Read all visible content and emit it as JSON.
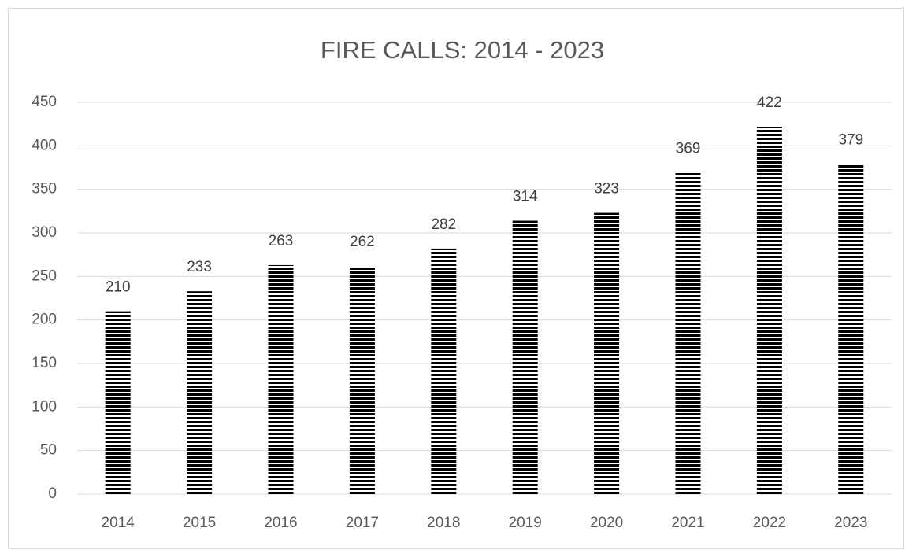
{
  "chart_data": {
    "type": "bar",
    "title": "FIRE CALLS: 2014 - 2023",
    "categories": [
      "2014",
      "2015",
      "2016",
      "2017",
      "2018",
      "2019",
      "2020",
      "2021",
      "2022",
      "2023"
    ],
    "values": [
      210,
      233,
      263,
      262,
      282,
      314,
      323,
      369,
      422,
      379
    ],
    "color": "#000000",
    "ylim": [
      0,
      450
    ],
    "yticks": [
      0,
      50,
      100,
      150,
      200,
      250,
      300,
      350,
      400,
      450
    ],
    "grid": true
  }
}
